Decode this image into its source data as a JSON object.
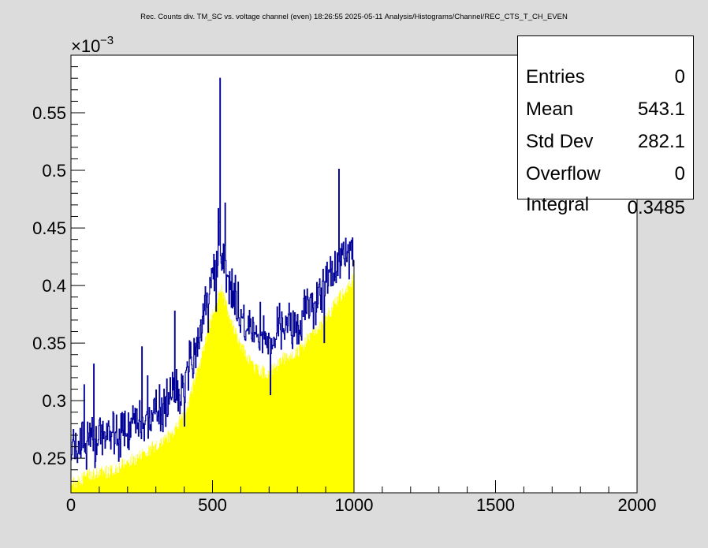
{
  "title": "Rec. Counts div. TM_SC vs. voltage channel (even)  18:26:55  2025-05-11  Analysis/Histograms/Channel/REC_CTS_T_CH_EVEN",
  "stats": [
    {
      "label": "Entries",
      "value": "0"
    },
    {
      "label": "Mean",
      "value": "543.1"
    },
    {
      "label": "Std Dev",
      "value": "282.1"
    },
    {
      "label": "Overflow",
      "value": "0"
    },
    {
      "label": "Integral",
      "value": "0.3485"
    }
  ],
  "colors": {
    "fill": "#ffff00",
    "line": "#000099",
    "frame": "#000000",
    "pad": "#dcdcdc",
    "plot": "#ffffff"
  },
  "chart_data": {
    "type": "area",
    "xlim": [
      0,
      2000
    ],
    "ylim": [
      0.00022,
      0.0006
    ],
    "xticks": [
      0,
      500,
      1000,
      1500,
      2000
    ],
    "yticks": [
      0.00025,
      0.0003,
      0.00035,
      0.0004,
      0.00045,
      0.0005,
      0.00055
    ],
    "ytick_labels": [
      "0.25",
      "0.3",
      "0.35",
      "0.4",
      "0.45",
      "0.5",
      "0.55"
    ],
    "y_multiplier": "×10",
    "y_exponent": "−3",
    "x_end_of_data": 1000,
    "series": [
      {
        "x": [
          0,
          50,
          100,
          150,
          200,
          250,
          300,
          350,
          400,
          450,
          500,
          530,
          550,
          600,
          650,
          700,
          750,
          800,
          850,
          900,
          950,
          1000
        ],
        "values": [
          0.000255,
          0.000262,
          0.000265,
          0.000268,
          0.000275,
          0.00028,
          0.00029,
          0.000298,
          0.000315,
          0.000355,
          0.000405,
          0.000425,
          0.00041,
          0.000375,
          0.000355,
          0.000352,
          0.000365,
          0.00037,
          0.000385,
          0.0004,
          0.000418,
          0.000435
        ]
      }
    ]
  }
}
